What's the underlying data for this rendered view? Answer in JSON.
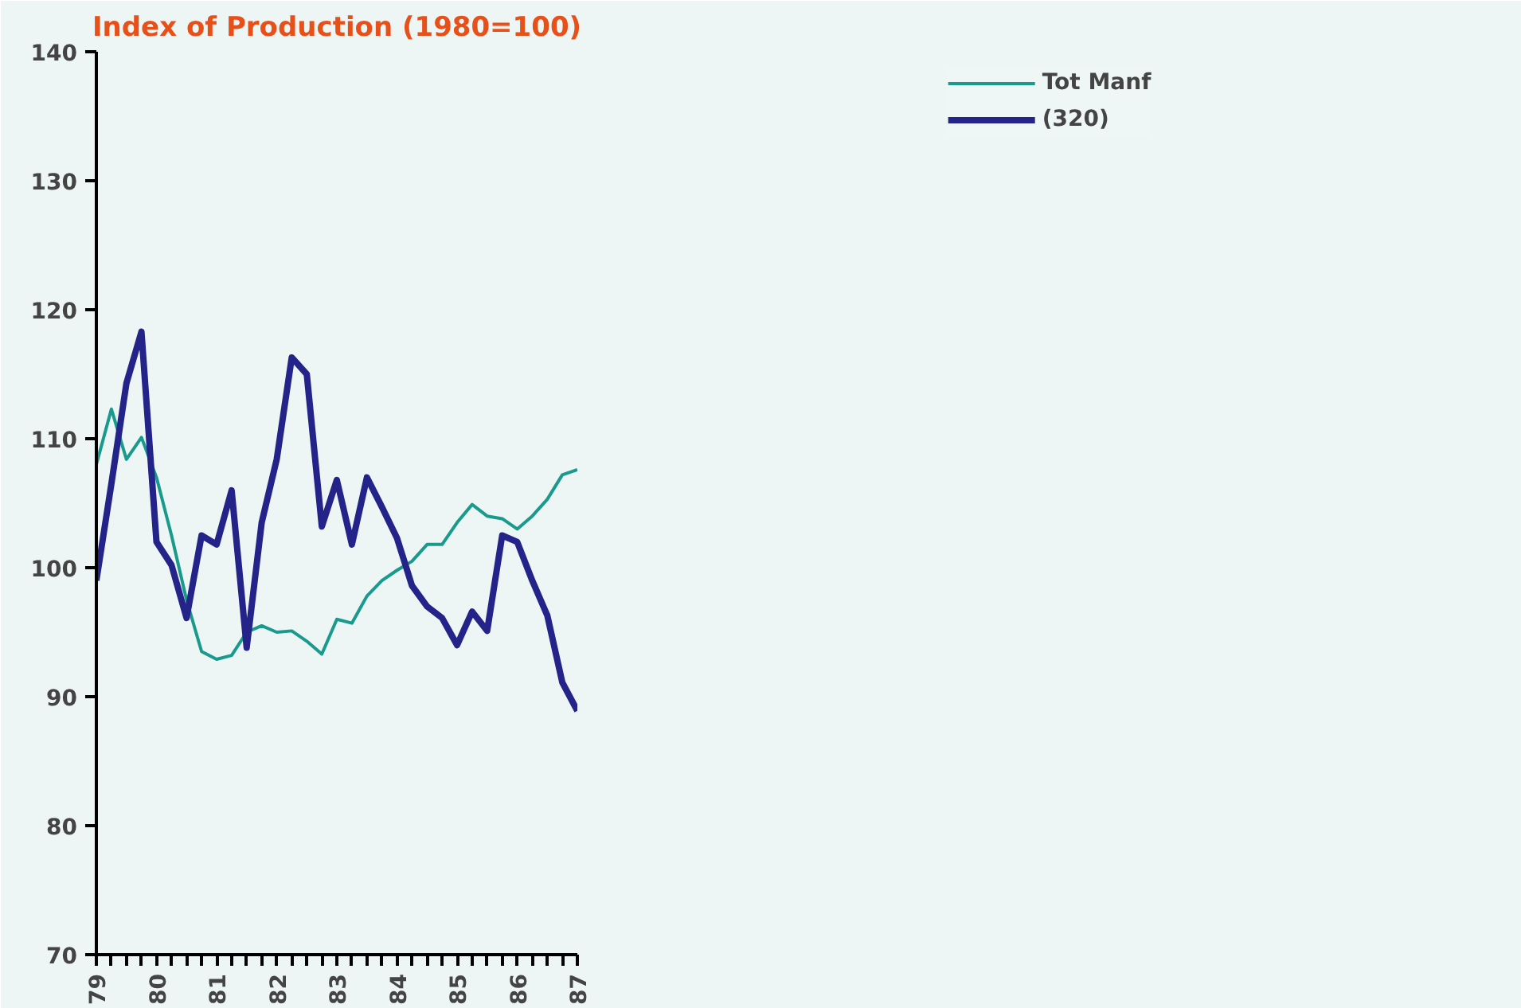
{
  "chart_data": {
    "type": "line",
    "title": "Index of Production (1980=100)",
    "x": [
      1979,
      1979.25,
      1979.5,
      1979.75,
      1980,
      1980.25,
      1980.5,
      1980.75,
      1981,
      1981.25,
      1981.5,
      1981.75,
      1982,
      1982.25,
      1982.5,
      1982.75,
      1983,
      1983.25,
      1983.5,
      1983.75,
      1984,
      1984.25,
      1984.5,
      1984.75,
      1985,
      1985.25,
      1985.5,
      1985.75,
      1986,
      1986.25,
      1986.5,
      1986.75,
      1987
    ],
    "series": [
      {
        "name": "Tot Manf",
        "color": "#1a9a8c",
        "values": [
          108,
          112.3,
          108.4,
          110.1,
          107,
          102.5,
          97.5,
          93.5,
          92.9,
          93.2,
          95,
          95.5,
          95,
          95.1,
          94.3,
          93.3,
          96,
          95.7,
          97.8,
          99,
          99.8,
          100.5,
          101.8,
          101.8,
          103.5,
          104.9,
          104,
          103.8,
          103,
          104,
          105.3,
          107.2,
          107.6
        ]
      },
      {
        "name": "(320)",
        "color": "#23238a",
        "values": [
          99,
          106.5,
          114.3,
          118.3,
          102,
          100.2,
          96.1,
          102.5,
          101.8,
          106,
          93.8,
          103.5,
          108.4,
          116.3,
          115,
          103.2,
          106.8,
          101.8,
          107,
          104.7,
          102.3,
          98.6,
          97,
          96.1,
          94,
          96.6,
          95.1,
          102.5,
          102,
          99,
          96.3,
          91.1,
          88.9
        ]
      }
    ],
    "xlim": [
      1979,
      1987
    ],
    "xticks": [
      {
        "value": 1979,
        "label": "79"
      },
      {
        "value": 1979.25,
        "label": null
      },
      {
        "value": 1979.5,
        "label": null
      },
      {
        "value": 1979.75,
        "label": null
      },
      {
        "value": 1980,
        "label": "80"
      },
      {
        "value": 1980.25,
        "label": null
      },
      {
        "value": 1980.5,
        "label": null
      },
      {
        "value": 1980.75,
        "label": null
      },
      {
        "value": 1981,
        "label": "81"
      },
      {
        "value": 1981.25,
        "label": null
      },
      {
        "value": 1981.5,
        "label": null
      },
      {
        "value": 1981.75,
        "label": null
      },
      {
        "value": 1982,
        "label": "82"
      },
      {
        "value": 1982.25,
        "label": null
      },
      {
        "value": 1982.5,
        "label": null
      },
      {
        "value": 1982.75,
        "label": null
      },
      {
        "value": 1983,
        "label": "83"
      },
      {
        "value": 1983.25,
        "label": null
      },
      {
        "value": 1983.5,
        "label": null
      },
      {
        "value": 1983.75,
        "label": null
      },
      {
        "value": 1984,
        "label": "84"
      },
      {
        "value": 1984.25,
        "label": null
      },
      {
        "value": 1984.5,
        "label": null
      },
      {
        "value": 1984.75,
        "label": null
      },
      {
        "value": 1985,
        "label": "85"
      },
      {
        "value": 1985.25,
        "label": null
      },
      {
        "value": 1985.5,
        "label": null
      },
      {
        "value": 1985.75,
        "label": null
      },
      {
        "value": 1986,
        "label": "86"
      },
      {
        "value": 1986.25,
        "label": null
      },
      {
        "value": 1986.5,
        "label": null
      },
      {
        "value": 1986.75,
        "label": null
      },
      {
        "value": 1987,
        "label": "87"
      }
    ],
    "ylim": [
      70,
      140
    ],
    "yticks": [
      70,
      80,
      90,
      100,
      110,
      120,
      130,
      140
    ],
    "grid": false,
    "legend": "top right",
    "marker": "none",
    "line_style": "solid"
  }
}
